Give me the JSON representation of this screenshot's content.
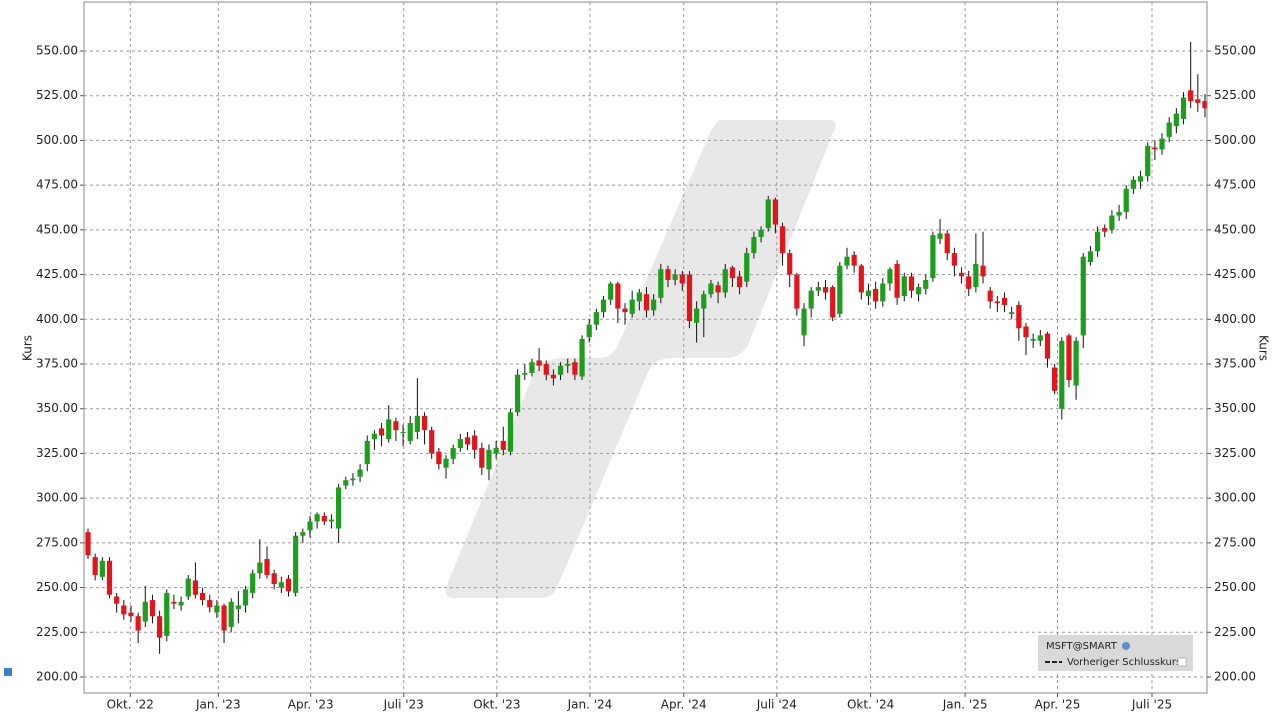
{
  "chart_data": {
    "type": "candlestick",
    "ylabel": "Kurs",
    "symbol": "MSFT@SMART",
    "legend_entry": "Vorheriger Schlusskurs",
    "up_color": "#1c9e1c",
    "down_color": "#e5141b",
    "grid": true,
    "xlim": [
      -0.56,
      156.28
    ],
    "ylim": [
      191.05,
      577.4
    ],
    "yticks": [
      {
        "value": 200,
        "label": "200.00"
      },
      {
        "value": 225,
        "label": "225.00"
      },
      {
        "value": 250,
        "label": "250.00"
      },
      {
        "value": 275,
        "label": "275.00"
      },
      {
        "value": 300,
        "label": "300.00"
      },
      {
        "value": 325,
        "label": "325.00"
      },
      {
        "value": 350,
        "label": "350.00"
      },
      {
        "value": 375,
        "label": "375.00"
      },
      {
        "value": 400,
        "label": "400.00"
      },
      {
        "value": 425,
        "label": "425.00"
      },
      {
        "value": 450,
        "label": "450.00"
      },
      {
        "value": 475,
        "label": "475.00"
      },
      {
        "value": 500,
        "label": "500.00"
      },
      {
        "value": 525,
        "label": "525.00"
      },
      {
        "value": 550,
        "label": "550.00"
      }
    ],
    "xticks": [
      {
        "value": 5.9,
        "label": "Okt. '22"
      },
      {
        "value": 18.2,
        "label": "Jan. '23"
      },
      {
        "value": 31.1,
        "label": "Apr. '23"
      },
      {
        "value": 44.1,
        "label": "Juli '23"
      },
      {
        "value": 57.1,
        "label": "Okt. '23"
      },
      {
        "value": 70.1,
        "label": "Jan. '24"
      },
      {
        "value": 83.2,
        "label": "Apr. '24"
      },
      {
        "value": 96.2,
        "label": "Juli '24"
      },
      {
        "value": 109.3,
        "label": "Okt. '24"
      },
      {
        "value": 122.5,
        "label": "Jan. '25"
      },
      {
        "value": 135.4,
        "label": "Apr. '25"
      },
      {
        "value": 148.6,
        "label": "Juli '25"
      }
    ],
    "open": [
      281,
      267,
      256,
      265,
      245,
      240,
      236,
      234,
      231,
      243,
      234,
      223,
      242,
      240,
      245,
      254,
      247,
      243,
      236,
      240,
      228,
      238,
      240,
      247,
      258,
      266,
      258,
      250,
      255,
      247,
      279,
      282,
      287,
      290,
      287,
      283,
      307,
      310,
      312,
      319,
      333,
      339,
      333,
      343,
      337,
      332,
      337,
      346,
      338,
      326,
      317,
      322,
      328,
      334,
      335,
      328,
      316,
      325,
      332,
      326,
      348,
      369,
      370,
      377,
      375,
      369,
      369,
      374,
      376,
      368,
      390,
      397,
      404,
      411,
      420,
      406,
      403,
      410,
      414,
      405,
      412,
      428,
      422,
      425,
      425,
      398,
      406,
      414,
      419,
      415,
      429,
      424,
      421,
      437,
      446,
      451,
      467,
      452,
      437,
      425,
      391,
      406,
      416,
      418,
      418,
      403,
      430,
      436,
      430,
      413,
      417,
      410,
      420,
      431,
      413,
      424,
      414,
      417,
      423,
      445,
      448,
      437,
      426,
      424,
      418,
      430,
      416,
      410,
      412,
      403,
      408,
      396,
      388,
      388,
      392,
      373,
      350,
      391,
      363,
      391,
      432,
      438,
      451,
      450,
      458,
      460,
      473,
      477,
      480,
      496,
      495,
      502,
      508,
      512,
      528,
      523,
      522
    ],
    "high": [
      283,
      269,
      267,
      267,
      247,
      243,
      240,
      236,
      251,
      246,
      237,
      249,
      246,
      245,
      257,
      264,
      250,
      246,
      243,
      241,
      244,
      248,
      251,
      260,
      277,
      273,
      260,
      256,
      257,
      281,
      283,
      290,
      292,
      292,
      291,
      308,
      312,
      314,
      319,
      335,
      338,
      342,
      352,
      345,
      341,
      346,
      367,
      348,
      340,
      328,
      324,
      330,
      336,
      337,
      338,
      331,
      330,
      332,
      340,
      350,
      372,
      375,
      378,
      384,
      377,
      372,
      376,
      378,
      378,
      391,
      400,
      406,
      413,
      421,
      421,
      409,
      416,
      417,
      418,
      414,
      431,
      430,
      428,
      427,
      427,
      410,
      416,
      422,
      421,
      431,
      430,
      427,
      440,
      449,
      452,
      469,
      468,
      454,
      439,
      426,
      409,
      418,
      421,
      422,
      419,
      432,
      440,
      438,
      431,
      420,
      421,
      423,
      429,
      433,
      426,
      426,
      420,
      425,
      449,
      456,
      450,
      440,
      429,
      427,
      448,
      449,
      418,
      413,
      415,
      407,
      410,
      398,
      392,
      394,
      393,
      375,
      390,
      392,
      390,
      437,
      441,
      452,
      453,
      461,
      464,
      475,
      480,
      483,
      499,
      500,
      504,
      513,
      518,
      527,
      555,
      537,
      526
    ],
    "low": [
      266,
      254,
      254,
      244,
      236,
      232,
      231,
      219,
      228,
      230,
      213,
      220,
      238,
      237,
      243,
      244,
      240,
      236,
      233,
      219,
      225,
      230,
      236,
      244,
      255,
      255,
      249,
      247,
      245,
      245,
      275,
      278,
      283,
      285,
      283,
      275,
      305,
      307,
      309,
      315,
      327,
      329,
      331,
      332,
      329,
      330,
      333,
      330,
      322,
      316,
      311,
      319,
      326,
      327,
      322,
      313,
      310,
      322,
      324,
      324,
      346,
      366,
      368,
      371,
      366,
      363,
      366,
      370,
      366,
      366,
      387,
      394,
      401,
      408,
      398,
      397,
      401,
      405,
      401,
      402,
      409,
      418,
      419,
      416,
      395,
      387,
      390,
      412,
      409,
      412,
      418,
      414,
      418,
      434,
      443,
      449,
      448,
      430,
      418,
      402,
      385,
      401,
      413,
      411,
      399,
      401,
      428,
      426,
      411,
      408,
      406,
      407,
      416,
      408,
      410,
      412,
      410,
      414,
      421,
      442,
      433,
      424,
      420,
      413,
      415,
      420,
      406,
      404,
      404,
      400,
      388,
      380,
      384,
      385,
      373,
      358,
      344,
      362,
      355,
      384,
      430,
      435,
      446,
      448,
      455,
      456,
      470,
      473,
      477,
      489,
      492,
      499,
      504,
      509,
      518,
      516,
      513
    ],
    "close": [
      268,
      257,
      265,
      246,
      241,
      235,
      234,
      226,
      242,
      234,
      222,
      247,
      241,
      242,
      255,
      246,
      243,
      239,
      240,
      226,
      242,
      240,
      249,
      258,
      264,
      257,
      252,
      253,
      248,
      279,
      281,
      287,
      291,
      287,
      288,
      306,
      310,
      311,
      316,
      332,
      336,
      335,
      344,
      338,
      337,
      342,
      346,
      338,
      325,
      319,
      322,
      328,
      333,
      330,
      327,
      317,
      327,
      328,
      327,
      348,
      369,
      370,
      376,
      374,
      369,
      367,
      374,
      375,
      369,
      389,
      397,
      404,
      411,
      420,
      406,
      404,
      411,
      415,
      405,
      411,
      428,
      422,
      425,
      420,
      399,
      406,
      414,
      420,
      415,
      428,
      423,
      418,
      437,
      446,
      450,
      467,
      453,
      437,
      425,
      406,
      406,
      416,
      418,
      415,
      401,
      430,
      435,
      430,
      415,
      416,
      410,
      420,
      428,
      412,
      424,
      416,
      418,
      422,
      447,
      448,
      437,
      430,
      424,
      417,
      431,
      424,
      410,
      409,
      408,
      404,
      395,
      390,
      389,
      391,
      378,
      360,
      388,
      366,
      388,
      435,
      438,
      449,
      449,
      458,
      460,
      473,
      478,
      480,
      497,
      495,
      501,
      510,
      515,
      524,
      522,
      521,
      518
    ]
  }
}
